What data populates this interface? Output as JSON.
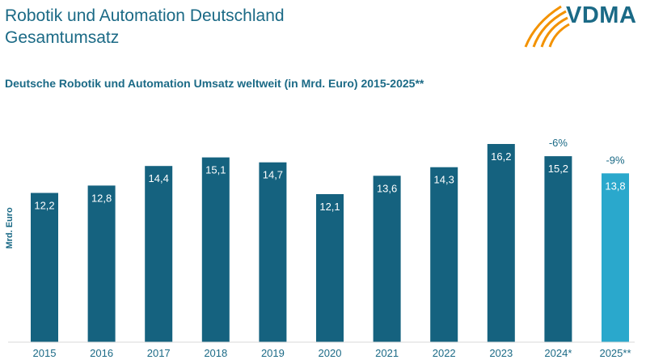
{
  "header": {
    "title_line1": "Robotik und Automation Deutschland",
    "title_line2": "Gesamtumsatz",
    "logo_text": "VDMA"
  },
  "colors": {
    "bar": "#15627f",
    "bar_highlight": "#2aa8cc",
    "text": "#1b6a86",
    "logo_orange": "#f39200"
  },
  "chart_data": {
    "type": "bar",
    "title": "Deutsche Robotik und Automation Umsatz weltweit (in Mrd. Euro) 2015-2025**",
    "xlabel": "",
    "ylabel": "Mrd. Euro",
    "categories": [
      "2015",
      "2016",
      "2017",
      "2018",
      "2019",
      "2020",
      "2021",
      "2022",
      "2023",
      "2024*",
      "2025**"
    ],
    "values": [
      12.2,
      12.8,
      14.4,
      15.1,
      14.7,
      12.1,
      13.6,
      14.3,
      16.2,
      15.2,
      13.8
    ],
    "value_labels": [
      "12,2",
      "12,8",
      "14,4",
      "15,1",
      "14,7",
      "12,1",
      "13,6",
      "14,3",
      "16,2",
      "15,2",
      "13,8"
    ],
    "annotations": [
      {
        "category": "2024*",
        "text": "-6%"
      },
      {
        "category": "2025**",
        "text": "-9%"
      }
    ],
    "highlight": [
      "2025**"
    ],
    "ylim": [
      0,
      16.2
    ],
    "grid": false,
    "legend": "none"
  }
}
